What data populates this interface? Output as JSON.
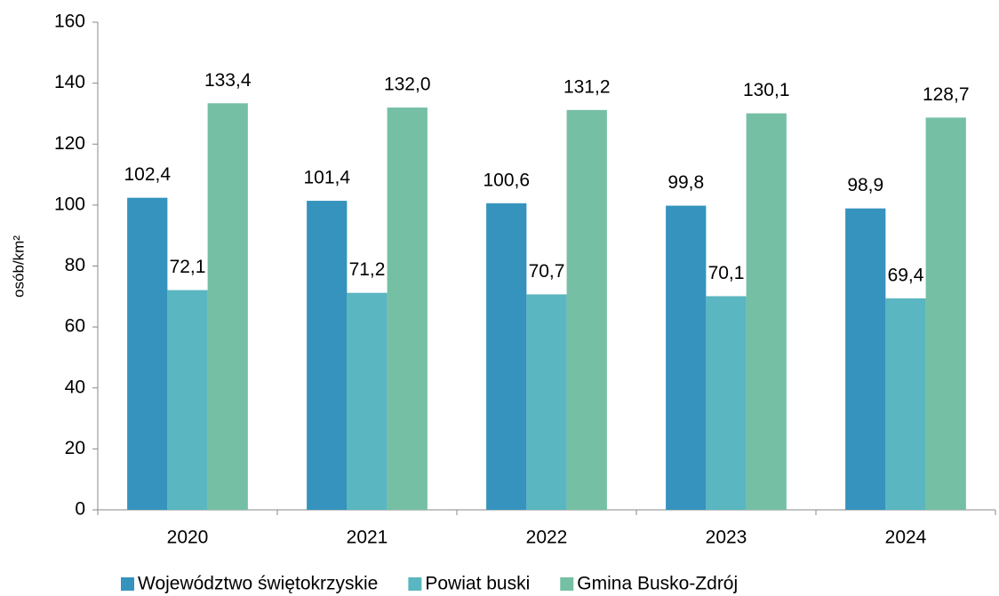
{
  "chart_data": {
    "type": "bar",
    "y_label": "osób/km²",
    "categories": [
      "2020",
      "2021",
      "2022",
      "2023",
      "2024"
    ],
    "series": [
      {
        "name": "Województwo świętokrzyskie",
        "color": "#3593bd",
        "values": [
          102.4,
          101.4,
          100.6,
          99.8,
          98.9
        ],
        "value_labels": [
          "102,4",
          "101,4",
          "100,6",
          "99,8",
          "98,9"
        ]
      },
      {
        "name": "Powiat buski",
        "color": "#5ab6c0",
        "values": [
          72.1,
          71.2,
          70.7,
          70.1,
          69.4
        ],
        "value_labels": [
          "72,1",
          "71,2",
          "70,7",
          "70,1",
          "69,4"
        ]
      },
      {
        "name": "Gmina Busko-Zdrój",
        "color": "#75bfa5",
        "values": [
          133.4,
          132.0,
          131.2,
          130.1,
          128.7
        ],
        "value_labels": [
          "133,4",
          "132,0",
          "131,2",
          "130,1",
          "128,7"
        ]
      }
    ],
    "ylim": [
      0,
      160
    ],
    "yticks": [
      0,
      20,
      40,
      60,
      80,
      100,
      120,
      140,
      160
    ],
    "legend": "bottom"
  }
}
